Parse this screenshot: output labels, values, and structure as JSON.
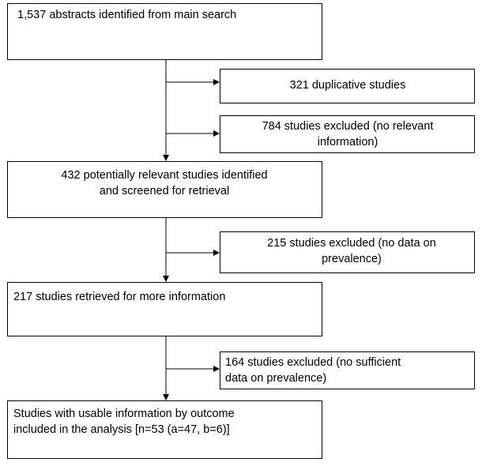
{
  "nodes": [
    {
      "lines": [
        "1,537 abstracts identified from main search"
      ]
    },
    {
      "lines": [
        "321 duplicative studies"
      ]
    },
    {
      "lines": [
        "784 studies excluded (no relevant",
        "information)"
      ]
    },
    {
      "lines": [
        "432 potentially relevant studies identified",
        "and screened for retrieval"
      ]
    },
    {
      "lines": [
        "215 studies excluded (no data on",
        "prevalence)"
      ]
    },
    {
      "lines": [
        "217 studies retrieved for more information"
      ]
    },
    {
      "lines": [
        "164 studies excluded (no sufficient",
        "data on prevalence)"
      ]
    },
    {
      "lines": [
        "Studies with usable information by outcome",
        "included in the analysis [n=53 (a=47, b=6)]"
      ]
    }
  ]
}
